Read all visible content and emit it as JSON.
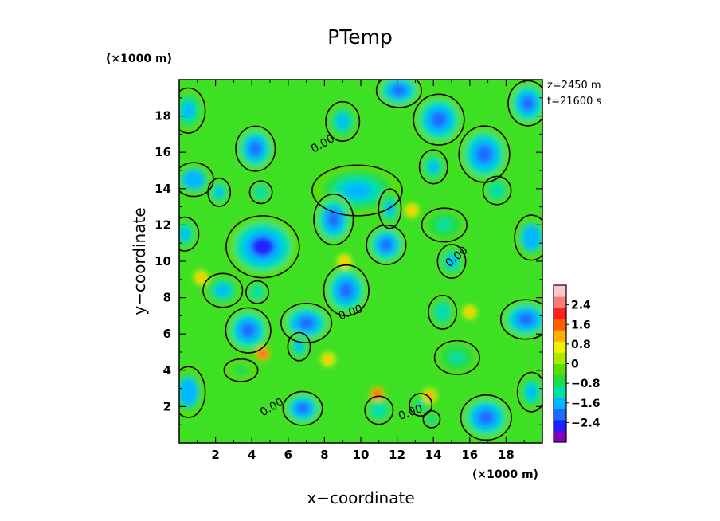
{
  "chart_data": {
    "type": "heatmap",
    "title": "PTemp",
    "xlabel": "x−coordinate",
    "ylabel": "y−coordinate",
    "x_unit": "(×1000 m)",
    "y_unit": "(×1000 m)",
    "annotations": [
      "z=2450 m",
      "t=21600 s"
    ],
    "contour_label": "0.00",
    "xlim": [
      0,
      20
    ],
    "ylim": [
      0,
      20
    ],
    "xticks": [
      2,
      4,
      6,
      8,
      10,
      12,
      14,
      16,
      18
    ],
    "yticks": [
      2,
      4,
      6,
      8,
      10,
      12,
      14,
      16,
      18
    ],
    "colorbar": {
      "range": [
        -3.2,
        3.2
      ],
      "ticks": [
        2.4,
        1.6,
        0.8,
        0,
        -0.8,
        -1.6,
        -2.4
      ],
      "tick_labels": [
        "2.4",
        "1.6",
        "0.8",
        "0",
        "−0.8",
        "−1.6",
        "−2.4"
      ],
      "colors": [
        "#8000c0",
        "#2020ff",
        "#1c6cff",
        "#00b8ff",
        "#00e0a8",
        "#22dc44",
        "#5ae000",
        "#a8ec00",
        "#f0f000",
        "#ffb000",
        "#ff6000",
        "#ff2020",
        "#ff7a7a",
        "#ffc8c8"
      ]
    },
    "cold_blobs": [
      {
        "x": 0.5,
        "y": 18.3,
        "rx": 0.6,
        "ry": 0.8,
        "v": -1.8
      },
      {
        "x": 12.1,
        "y": 19.4,
        "rx": 0.8,
        "ry": 0.6,
        "v": -2.1
      },
      {
        "x": 14.3,
        "y": 17.8,
        "rx": 0.9,
        "ry": 0.9,
        "v": -2.4
      },
      {
        "x": 19.2,
        "y": 18.7,
        "rx": 0.7,
        "ry": 0.8,
        "v": -2.0
      },
      {
        "x": 9.0,
        "y": 17.7,
        "rx": 0.6,
        "ry": 0.7,
        "v": -1.6
      },
      {
        "x": 4.2,
        "y": 16.2,
        "rx": 0.7,
        "ry": 0.8,
        "v": -2.2
      },
      {
        "x": 16.8,
        "y": 15.9,
        "rx": 0.9,
        "ry": 1.0,
        "v": -2.4
      },
      {
        "x": 14.0,
        "y": 15.2,
        "rx": 0.5,
        "ry": 0.6,
        "v": -1.8
      },
      {
        "x": 0.8,
        "y": 14.5,
        "rx": 0.7,
        "ry": 0.6,
        "v": -1.9
      },
      {
        "x": 2.2,
        "y": 13.8,
        "rx": 0.4,
        "ry": 0.5,
        "v": -1.6
      },
      {
        "x": 4.5,
        "y": 13.8,
        "rx": 0.4,
        "ry": 0.4,
        "v": -1.3
      },
      {
        "x": 9.8,
        "y": 13.9,
        "rx": 1.6,
        "ry": 0.9,
        "v": -1.7
      },
      {
        "x": 8.5,
        "y": 12.3,
        "rx": 0.7,
        "ry": 0.9,
        "v": -2.0
      },
      {
        "x": 11.6,
        "y": 12.9,
        "rx": 0.4,
        "ry": 0.7,
        "v": -1.6
      },
      {
        "x": 14.6,
        "y": 12.0,
        "rx": 0.8,
        "ry": 0.6,
        "v": -1.2
      },
      {
        "x": 17.5,
        "y": 13.9,
        "rx": 0.5,
        "ry": 0.5,
        "v": -1.4
      },
      {
        "x": 0.3,
        "y": 11.5,
        "rx": 0.5,
        "ry": 0.6,
        "v": -1.6
      },
      {
        "x": 19.4,
        "y": 11.3,
        "rx": 0.6,
        "ry": 0.8,
        "v": -1.9
      },
      {
        "x": 4.6,
        "y": 10.8,
        "rx": 1.3,
        "ry": 1.1,
        "v": -2.5
      },
      {
        "x": 11.4,
        "y": 10.9,
        "rx": 0.7,
        "ry": 0.7,
        "v": -2.2
      },
      {
        "x": 15.0,
        "y": 10.0,
        "rx": 0.5,
        "ry": 0.6,
        "v": -1.5
      },
      {
        "x": 9.2,
        "y": 8.4,
        "rx": 0.8,
        "ry": 0.9,
        "v": -2.2
      },
      {
        "x": 2.4,
        "y": 8.4,
        "rx": 0.7,
        "ry": 0.6,
        "v": -1.8
      },
      {
        "x": 4.3,
        "y": 8.3,
        "rx": 0.4,
        "ry": 0.4,
        "v": -1.4
      },
      {
        "x": 3.8,
        "y": 6.2,
        "rx": 0.8,
        "ry": 0.8,
        "v": -2.1
      },
      {
        "x": 7.0,
        "y": 6.6,
        "rx": 0.9,
        "ry": 0.7,
        "v": -2.0
      },
      {
        "x": 6.6,
        "y": 5.3,
        "rx": 0.4,
        "ry": 0.5,
        "v": -1.5
      },
      {
        "x": 14.5,
        "y": 7.2,
        "rx": 0.5,
        "ry": 0.6,
        "v": -1.4
      },
      {
        "x": 19.1,
        "y": 6.8,
        "rx": 0.9,
        "ry": 0.7,
        "v": -2.0
      },
      {
        "x": 0.5,
        "y": 2.8,
        "rx": 0.6,
        "ry": 0.9,
        "v": -1.9
      },
      {
        "x": 6.8,
        "y": 1.9,
        "rx": 0.7,
        "ry": 0.6,
        "v": -2.0
      },
      {
        "x": 11.0,
        "y": 1.8,
        "rx": 0.5,
        "ry": 0.5,
        "v": -1.3
      },
      {
        "x": 13.3,
        "y": 2.1,
        "rx": 0.4,
        "ry": 0.4,
        "v": -1.2
      },
      {
        "x": 16.9,
        "y": 1.4,
        "rx": 0.9,
        "ry": 0.8,
        "v": -2.3
      },
      {
        "x": 19.4,
        "y": 2.8,
        "rx": 0.5,
        "ry": 0.7,
        "v": -1.5
      },
      {
        "x": 13.9,
        "y": 1.3,
        "rx": 0.3,
        "ry": 0.3,
        "v": -1.2
      },
      {
        "x": 3.4,
        "y": 4.0,
        "rx": 0.6,
        "ry": 0.4,
        "v": -0.9
      },
      {
        "x": 15.3,
        "y": 4.7,
        "rx": 0.8,
        "ry": 0.6,
        "v": -1.0
      }
    ],
    "warm_spots": [
      {
        "x": 4.6,
        "y": 4.9,
        "v": 2.0
      },
      {
        "x": 10.9,
        "y": 2.7,
        "v": 1.9
      },
      {
        "x": 13.8,
        "y": 2.6,
        "v": 1.6
      },
      {
        "x": 9.1,
        "y": 10.0,
        "v": 1.2
      },
      {
        "x": 12.8,
        "y": 12.8,
        "v": 1.1
      },
      {
        "x": 16.0,
        "y": 7.2,
        "v": 1.1
      },
      {
        "x": 1.2,
        "y": 9.1,
        "v": 1.0
      },
      {
        "x": 8.2,
        "y": 4.6,
        "v": 1.1
      }
    ],
    "contour_label_positions": [
      {
        "x": 8.0,
        "y": 16.3,
        "angle": -30
      },
      {
        "x": 15.4,
        "y": 10.1,
        "angle": -40
      },
      {
        "x": 9.5,
        "y": 7.0,
        "angle": -20
      },
      {
        "x": 5.2,
        "y": 1.8,
        "angle": -30
      },
      {
        "x": 12.8,
        "y": 1.5,
        "angle": -20
      }
    ]
  }
}
